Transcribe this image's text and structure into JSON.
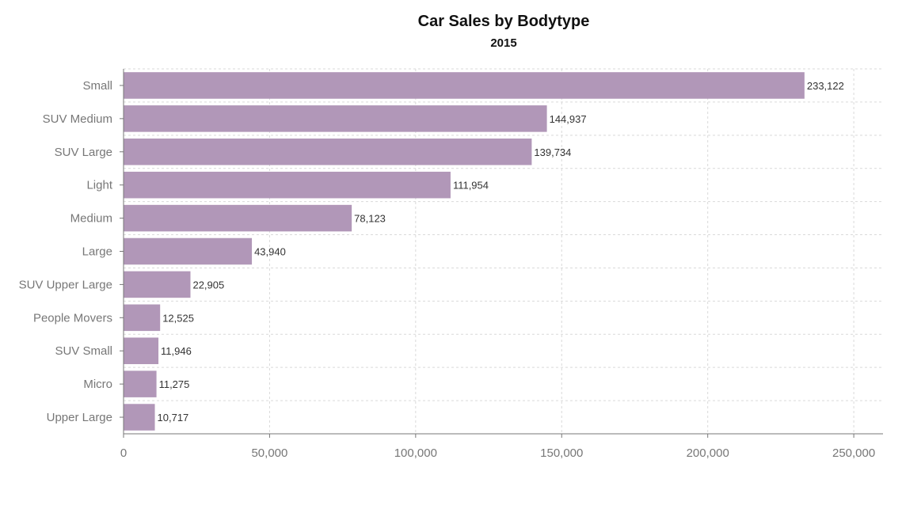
{
  "chart_data": {
    "type": "bar",
    "orientation": "horizontal",
    "title": "Car Sales by Bodytype",
    "subtitle": "2015",
    "xlabel": "",
    "ylabel": "",
    "categories": [
      "Small",
      "SUV Medium",
      "SUV Large",
      "Light",
      "Medium",
      "Large",
      "SUV Upper Large",
      "People Movers",
      "SUV Small",
      "Micro",
      "Upper Large"
    ],
    "values": [
      233122,
      144937,
      139734,
      111954,
      78123,
      43940,
      22905,
      12525,
      11946,
      11275,
      10717
    ],
    "value_labels": [
      "233,122",
      "144,937",
      "139,734",
      "111,954",
      "78,123",
      "43,940",
      "22,905",
      "12,525",
      "11,946",
      "11,275",
      "10,717"
    ],
    "xlim": [
      0,
      260000
    ],
    "x_ticks": [
      0,
      50000,
      100000,
      150000,
      200000,
      250000
    ],
    "x_tick_labels": [
      "0",
      "50,000",
      "100,000",
      "150,000",
      "200,000",
      "250,000"
    ],
    "grid": true,
    "bar_color": "#b197b8"
  }
}
